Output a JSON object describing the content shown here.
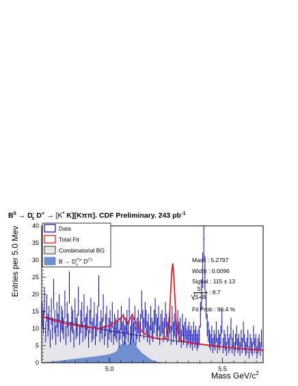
{
  "chart_data": {
    "type": "histogram",
    "title_parts": {
      "main": "B",
      "main_sup": "0",
      "arrow1": " → ",
      "ds": "D",
      "ds_sup": "-",
      "ds_sub": "s",
      "dplus": " D",
      "dplus_sup": "+",
      "arrow2": " → [K",
      "kstar_sup": "*",
      "rest": " K][Kππ]. CDF Preliminary. 243 pb",
      "lumi_sup": "-1"
    },
    "xlabel": "Mass GeV/c",
    "xlabel_sup": "2",
    "ylabel": "Entries per 5.0 Mev",
    "xlim": [
      4.7,
      5.68
    ],
    "ylim": [
      0,
      40
    ],
    "x_ticks": [
      {
        "v": 5.0,
        "label": "5.0"
      },
      {
        "v": 5.5,
        "label": "5.5"
      }
    ],
    "y_ticks": [
      0,
      5,
      10,
      15,
      20,
      25,
      30,
      35,
      40
    ],
    "legend": {
      "placement": "top-left",
      "entries": [
        {
          "id": "data",
          "label": "Data",
          "color": "#0000cc",
          "fill": "#ffffff"
        },
        {
          "id": "total_fit",
          "label": "Total Fit",
          "color": "#ff0000",
          "fill": "#ffffff"
        },
        {
          "id": "comb_bg",
          "label": "Combinatorial BG",
          "color": "#000000",
          "fill": "#e8e8ec"
        },
        {
          "id": "refl",
          "label": "B → D",
          "label_sup": "(*)+",
          "label_sub": "s",
          "label2": " D",
          "label2_sup": "(*)-",
          "color": "#5a7fc9",
          "fill": "#6f8fd0"
        }
      ]
    },
    "fit_results": [
      {
        "key": "Mass",
        "value": "5.2797"
      },
      {
        "key": "Width",
        "value": "0.0096"
      },
      {
        "key": "Signal",
        "value": "115 ± 13"
      },
      {
        "key": "S/√(S+B)",
        "value": "8.7"
      },
      {
        "key": "Fit Prob",
        "value": "96.4 %"
      }
    ],
    "fit_labels": {
      "mass": "Mass : 5.2797",
      "width": "Width : 0.0096",
      "signal": "Signal :  115 ± 13",
      "sb_num": "S",
      "sb_den": "S+B",
      "sb_val": ": 8.7",
      "prob": "Fit Prob : 96.4 %"
    },
    "bin_width": 0.005,
    "data_values": [
      14,
      12,
      18,
      9,
      16,
      11,
      13,
      7,
      15,
      10,
      20,
      12,
      8,
      14,
      11,
      16,
      9,
      13,
      12,
      10,
      17,
      8,
      14,
      11,
      22,
      9,
      13,
      12,
      7,
      15,
      10,
      11,
      18,
      8,
      12,
      14,
      9,
      16,
      10,
      11,
      13,
      7,
      12,
      15,
      9,
      10,
      14,
      8,
      11,
      13,
      21,
      9,
      12,
      10,
      16,
      8,
      11,
      13,
      7,
      10,
      12,
      9,
      14,
      8,
      11,
      10,
      9,
      12,
      7,
      10,
      13,
      9,
      11,
      8,
      10,
      12,
      9,
      15,
      8,
      10,
      11,
      9,
      13,
      8,
      10,
      12,
      9,
      11,
      17,
      12,
      10,
      14,
      12,
      9,
      11,
      8,
      13,
      10,
      9,
      12,
      15,
      11,
      10,
      13,
      8,
      11,
      12,
      9,
      10,
      14,
      11,
      9,
      10,
      12,
      8,
      13,
      9,
      11,
      10,
      8,
      12,
      9,
      10,
      7,
      11,
      8,
      9,
      10,
      7,
      8,
      9,
      7,
      8,
      6,
      9,
      7,
      8,
      6,
      7,
      8,
      14,
      20,
      27,
      36,
      26,
      17,
      11,
      9,
      7,
      6,
      8,
      5,
      7,
      6,
      9,
      5,
      7,
      6,
      8,
      12,
      5,
      7,
      6,
      4,
      8,
      5,
      6,
      10,
      5,
      7,
      4,
      6,
      8,
      5,
      6,
      4,
      7,
      5,
      9,
      6,
      4,
      5,
      7,
      3,
      6,
      5,
      4,
      8,
      5,
      6,
      3,
      5,
      6,
      4,
      7
    ],
    "total_fit": {
      "x": [
        4.7,
        4.75,
        4.8,
        4.85,
        4.9,
        4.95,
        5.0,
        5.03,
        5.06,
        5.08,
        5.1,
        5.12,
        5.15,
        5.18,
        5.22,
        5.25,
        5.265,
        5.275,
        5.28,
        5.285,
        5.295,
        5.31,
        5.35,
        5.4,
        5.45,
        5.5,
        5.55,
        5.6,
        5.68
      ],
      "y": [
        13.6,
        12.4,
        11.5,
        10.9,
        10.4,
        10.0,
        10.8,
        12.0,
        13.8,
        11.5,
        14.0,
        11.2,
        8.7,
        7.6,
        6.9,
        7.0,
        13.0,
        26.0,
        29.0,
        25.0,
        12.0,
        6.6,
        5.9,
        5.4,
        5.0,
        4.6,
        4.3,
        4.0,
        3.7
      ]
    },
    "comb_bg": {
      "x": [
        4.7,
        4.8,
        4.9,
        5.0,
        5.1,
        5.2,
        5.3,
        5.4,
        5.5,
        5.6,
        5.68
      ],
      "y": [
        13.6,
        12.0,
        10.6,
        9.4,
        8.3,
        7.3,
        6.3,
        5.5,
        4.7,
        4.0,
        3.6
      ]
    },
    "reflection": {
      "x": [
        4.7,
        4.75,
        4.8,
        4.85,
        4.9,
        4.95,
        5.0,
        5.03,
        5.05,
        5.07,
        5.08,
        5.09,
        5.1,
        5.11,
        5.12,
        5.14,
        5.16,
        5.18,
        5.2,
        5.22,
        5.24,
        5.26,
        5.68
      ],
      "y": [
        0.1,
        0.3,
        0.7,
        1.1,
        1.5,
        1.9,
        2.4,
        3.2,
        5.2,
        6.6,
        4.8,
        6.0,
        7.6,
        6.2,
        4.5,
        3.0,
        2.0,
        1.0,
        0.4,
        0.15,
        0.05,
        0,
        0
      ]
    }
  }
}
